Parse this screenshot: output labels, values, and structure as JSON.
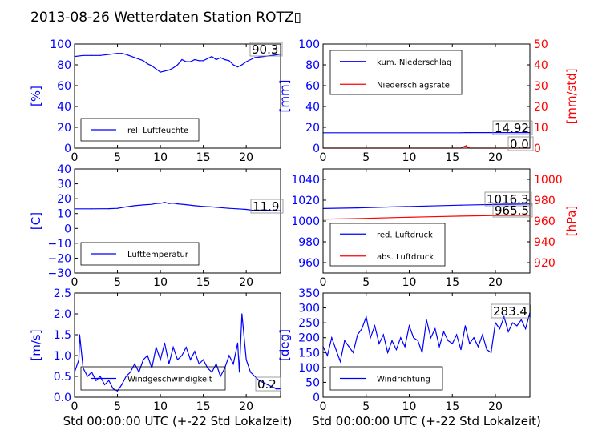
{
  "title": "2013-08-26 Wetterdaten Station ROTZ▯",
  "colors": {
    "blue": "#0000ff",
    "red": "#ff0000",
    "black": "#000000",
    "box": "#888888"
  },
  "chart_data": [
    {
      "type": "line",
      "ylabel": "[%]",
      "xlim": [
        0,
        24
      ],
      "ylim": [
        0,
        100
      ],
      "xticks": [
        "0",
        "5",
        "10",
        "15",
        "20"
      ],
      "yticks": [
        "0",
        "20",
        "40",
        "60",
        "80",
        "100"
      ],
      "legend": {
        "placement": "lower-left",
        "entries": [
          "rel. Luftfeuchte"
        ]
      },
      "annotation": "90.3",
      "series": [
        {
          "name": "rel. Luftfeuchte",
          "color": "blue",
          "x": [
            0,
            1,
            2,
            3,
            4,
            5,
            5.5,
            6,
            7,
            8,
            8.5,
            9,
            9.5,
            10,
            10.5,
            11,
            11.5,
            12,
            12.5,
            13,
            13.5,
            14,
            14.5,
            15,
            15.5,
            16,
            16.5,
            17,
            17.5,
            18,
            18.5,
            19,
            19.5,
            20,
            20.5,
            21,
            22,
            23,
            24
          ],
          "y": [
            88,
            89,
            89,
            89,
            90,
            91,
            91,
            90,
            87,
            84,
            81,
            79,
            76,
            73,
            74,
            75,
            77,
            80,
            85,
            83,
            83,
            85,
            84,
            84,
            86,
            88,
            85,
            87,
            85,
            84,
            80,
            78,
            80,
            83,
            85,
            87,
            88,
            89,
            90.3
          ]
        }
      ]
    },
    {
      "type": "line",
      "ylabel": "[mm]",
      "ylabel2": "[mm/std]",
      "xlim": [
        0,
        24
      ],
      "ylim": [
        0,
        100
      ],
      "ylim2": [
        0,
        50
      ],
      "xticks": [
        "0",
        "5",
        "10",
        "15",
        "20"
      ],
      "yticks": [
        "0",
        "20",
        "40",
        "60",
        "80",
        "100"
      ],
      "yticks2": [
        "0",
        "10",
        "20",
        "30",
        "40",
        "50"
      ],
      "legend": {
        "placement": "upper-left",
        "entries": [
          "kum. Niederschlag",
          "Niederschlagsrate"
        ]
      },
      "annotations": [
        "14.92",
        "0.0"
      ],
      "series": [
        {
          "name": "kum. Niederschlag",
          "color": "blue",
          "axis": "left",
          "x": [
            0,
            16,
            16.5,
            17,
            24
          ],
          "y": [
            14.8,
            14.8,
            14.9,
            14.92,
            14.92
          ]
        },
        {
          "name": "Niederschlagsrate",
          "color": "red",
          "axis": "right",
          "x": [
            0,
            16,
            16.4,
            16.6,
            16.8,
            17,
            24
          ],
          "y": [
            0,
            0,
            0.8,
            1.2,
            0.5,
            0,
            0
          ]
        }
      ]
    },
    {
      "type": "line",
      "ylabel": "[C]",
      "xlim": [
        0,
        24
      ],
      "ylim": [
        -30,
        40
      ],
      "xticks": [
        "0",
        "5",
        "10",
        "15",
        "20"
      ],
      "yticks": [
        "−30",
        "−20",
        "−10",
        "0",
        "10",
        "20",
        "30",
        "40"
      ],
      "legend": {
        "placement": "lower-left",
        "entries": [
          "Lufttemperatur"
        ]
      },
      "annotation": "11.9",
      "series": [
        {
          "name": "Lufttemperatur",
          "color": "blue",
          "x": [
            0,
            2,
            4,
            5,
            6,
            7,
            8,
            9,
            9.5,
            10,
            10.5,
            11,
            11.5,
            12,
            13,
            14,
            15,
            16,
            17,
            18,
            19,
            20,
            21,
            22,
            23,
            24
          ],
          "y": [
            13.2,
            13.2,
            13.3,
            13.5,
            14.5,
            15.3,
            15.8,
            16.2,
            16.8,
            16.9,
            17.5,
            16.8,
            17.0,
            16.5,
            16.0,
            15.3,
            14.8,
            14.5,
            14.0,
            13.5,
            13.2,
            12.8,
            12.0,
            12.5,
            12.0,
            11.9
          ]
        }
      ]
    },
    {
      "type": "line",
      "ylabel2": "[hPa]",
      "xlim": [
        0,
        24
      ],
      "ylim": [
        950,
        1050
      ],
      "ylim2": [
        910,
        1010
      ],
      "xticks": [
        "0",
        "5",
        "10",
        "15",
        "20"
      ],
      "yticks": [
        "960",
        "980",
        "1000",
        "1020",
        "1040"
      ],
      "yticks2": [
        "920",
        "940",
        "960",
        "980",
        "1000"
      ],
      "legend": {
        "placement": "lower-left",
        "entries": [
          "red. Luftdruck",
          "abs. Luftdruck"
        ]
      },
      "annotations": [
        "1016.3",
        "965.5"
      ],
      "series": [
        {
          "name": "red. Luftdruck",
          "color": "blue",
          "axis": "left",
          "x": [
            0,
            4,
            8,
            12,
            16,
            20,
            24
          ],
          "y": [
            1012,
            1012.6,
            1013.5,
            1014.4,
            1015.2,
            1015.9,
            1016.3
          ]
        },
        {
          "name": "abs. Luftdruck",
          "color": "red",
          "axis": "right",
          "x": [
            0,
            4,
            8,
            12,
            16,
            20,
            24
          ],
          "y": [
            961.8,
            962.3,
            963.2,
            964.0,
            964.7,
            965.2,
            965.5
          ]
        }
      ]
    },
    {
      "type": "line",
      "ylabel": "[m/s]",
      "xlim": [
        0,
        24
      ],
      "ylim": [
        0,
        2.5
      ],
      "xticks": [
        "0",
        "5",
        "10",
        "15",
        "20"
      ],
      "xlabel": "Std 00:00:00 UTC (+-22 Std Lokalzeit)",
      "yticks": [
        "0.0",
        "0.5",
        "1.0",
        "1.5",
        "2.0",
        "2.5"
      ],
      "legend": {
        "placement": "center",
        "entries": [
          "Windgeschwindigkeit"
        ]
      },
      "annotation": "0.2",
      "series": [
        {
          "name": "Windgeschwindigkeit",
          "color": "blue",
          "x": [
            0,
            0.5,
            0.6,
            1,
            1.5,
            2,
            2.5,
            3,
            3.5,
            4,
            4.5,
            5,
            5.5,
            6,
            6.5,
            7,
            7.5,
            8,
            8.5,
            9,
            9.5,
            10,
            10.5,
            11,
            11.5,
            12,
            12.5,
            13,
            13.5,
            14,
            14.5,
            15,
            15.5,
            16,
            16.5,
            17,
            17.5,
            18,
            18.5,
            19,
            19.2,
            19.5,
            20,
            20.5,
            21,
            21.5,
            22,
            22.5,
            23,
            23.5,
            24
          ],
          "y": [
            0.6,
            0.9,
            1.5,
            0.7,
            0.5,
            0.6,
            0.4,
            0.5,
            0.3,
            0.4,
            0.2,
            0.15,
            0.3,
            0.5,
            0.6,
            0.8,
            0.6,
            0.9,
            1.0,
            0.7,
            1.2,
            0.9,
            1.3,
            0.8,
            1.2,
            0.9,
            1.0,
            1.2,
            0.9,
            1.1,
            0.8,
            0.9,
            0.7,
            0.6,
            0.8,
            0.5,
            0.7,
            1.0,
            0.8,
            1.3,
            0.6,
            2.0,
            0.9,
            0.6,
            0.5,
            0.4,
            0.35,
            0.3,
            0.25,
            0.2,
            0.2
          ]
        }
      ]
    },
    {
      "type": "line",
      "ylabel": "[deg]",
      "xlim": [
        0,
        24
      ],
      "ylim": [
        0,
        350
      ],
      "xticks": [
        "0",
        "5",
        "10",
        "15",
        "20"
      ],
      "xlabel": "Std 00:00:00 UTC (+-22 Std Lokalzeit)",
      "yticks": [
        "0",
        "50",
        "100",
        "150",
        "200",
        "250",
        "300",
        "350"
      ],
      "legend": {
        "placement": "lower-left",
        "entries": [
          "Windrichtung"
        ]
      },
      "annotation": "283.4",
      "series": [
        {
          "name": "Windrichtung",
          "color": "blue",
          "x": [
            0,
            0.5,
            1,
            1.5,
            2,
            2.5,
            3,
            3.5,
            4,
            4.5,
            5,
            5.5,
            6,
            6.5,
            7,
            7.5,
            8,
            8.5,
            9,
            9.5,
            10,
            10.5,
            11,
            11.5,
            12,
            12.5,
            13,
            13.5,
            14,
            14.5,
            15,
            15.5,
            16,
            16.5,
            17,
            17.5,
            18,
            18.5,
            19,
            19.5,
            20,
            20.5,
            21,
            21.5,
            22,
            22.5,
            23,
            23.5,
            24
          ],
          "y": [
            170,
            140,
            200,
            160,
            120,
            190,
            170,
            150,
            210,
            230,
            270,
            200,
            240,
            180,
            210,
            150,
            190,
            160,
            200,
            170,
            240,
            200,
            190,
            150,
            260,
            200,
            230,
            170,
            220,
            190,
            180,
            210,
            160,
            240,
            180,
            200,
            170,
            210,
            160,
            150,
            250,
            230,
            270,
            220,
            250,
            240,
            260,
            230,
            283.4
          ]
        }
      ]
    }
  ]
}
